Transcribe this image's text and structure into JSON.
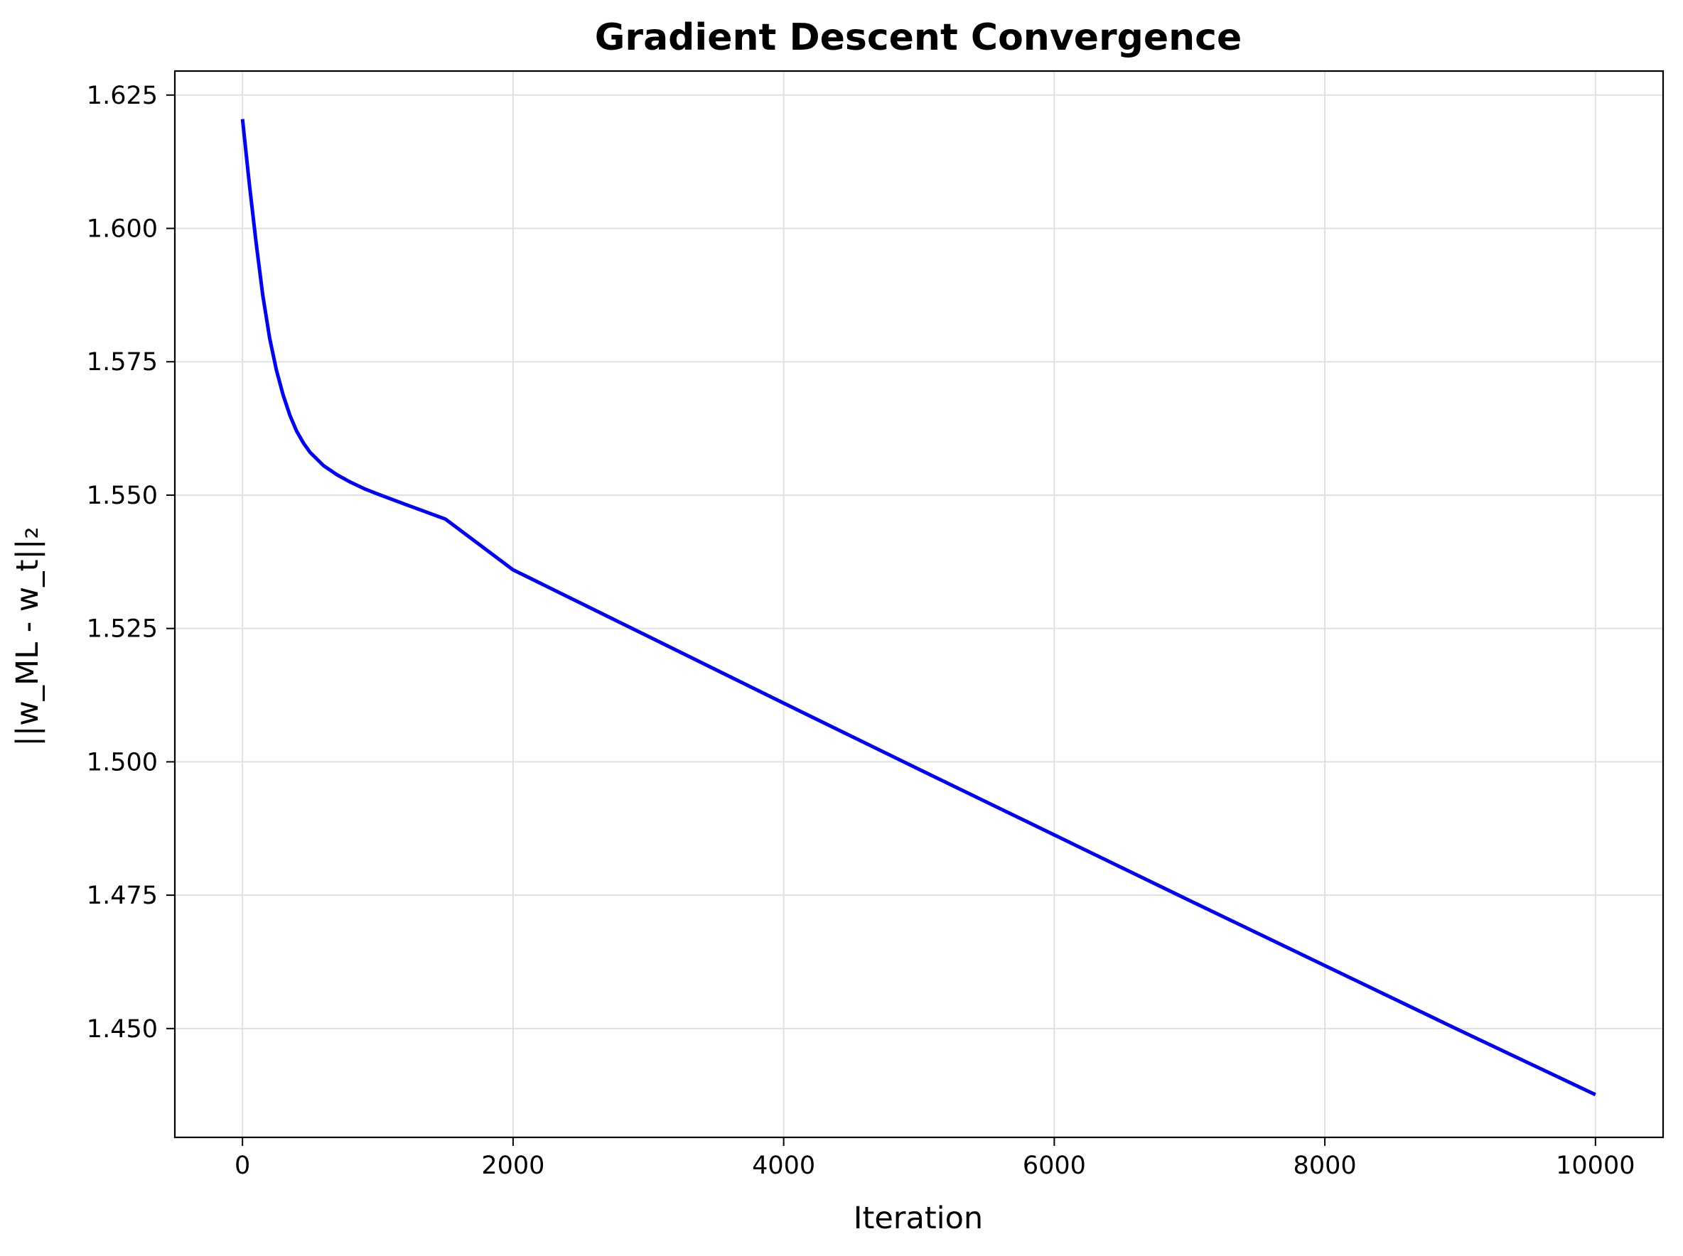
{
  "chart_data": {
    "type": "line",
    "title": "Gradient Descent Convergence",
    "xlabel": "Iteration",
    "ylabel": "||w_ML - w_t||₂",
    "xlim": [
      -500,
      10500
    ],
    "ylim": [
      1.4296,
      1.6295
    ],
    "grid": true,
    "x_ticks": [
      0,
      2000,
      4000,
      6000,
      8000,
      10000
    ],
    "x_tick_labels": [
      "0",
      "2000",
      "4000",
      "6000",
      "8000",
      "10000"
    ],
    "y_ticks": [
      1.45,
      1.475,
      1.5,
      1.525,
      1.55,
      1.575,
      1.6,
      1.625
    ],
    "y_tick_labels": [
      "1.450",
      "1.475",
      "1.500",
      "1.525",
      "1.550",
      "1.575",
      "1.600",
      "1.625"
    ],
    "series": [
      {
        "color": "#0000ff",
        "x": [
          0,
          50,
          100,
          150,
          200,
          250,
          300,
          350,
          400,
          450,
          500,
          600,
          700,
          800,
          900,
          1000,
          1200,
          1500,
          2000,
          3000,
          4000,
          5000,
          6000,
          7000,
          8000,
          9000,
          10000
        ],
        "y": [
          1.6205,
          1.6085,
          1.5975,
          1.5875,
          1.5795,
          1.5735,
          1.5688,
          1.565,
          1.562,
          1.5598,
          1.558,
          1.5555,
          1.5538,
          1.5524,
          1.5512,
          1.5502,
          1.5483,
          1.5455,
          1.536,
          1.5235,
          1.511,
          1.4986,
          1.4863,
          1.474,
          1.4618,
          1.4496,
          1.4376
        ]
      }
    ]
  }
}
